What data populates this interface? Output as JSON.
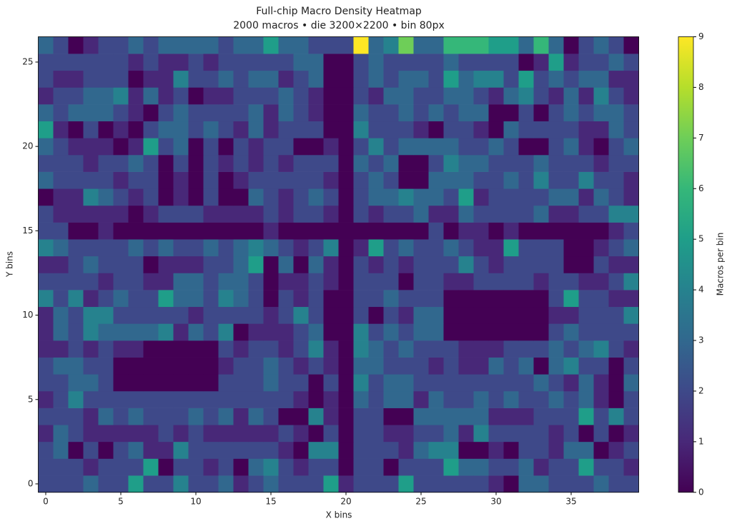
{
  "chart_data": {
    "type": "heatmap",
    "title": "Full-chip Macro Density Heatmap",
    "subtitle": "2000 macros • die 3200×2200 • bin 80px",
    "x_label": "X bins",
    "y_label": "Y bins",
    "colorbar_label": "Macros per bin",
    "colormap": [
      "#440154",
      "#482878",
      "#3e4989",
      "#31688e",
      "#26828e",
      "#1f9e89",
      "#35b779",
      "#6ece58",
      "#b5de2b",
      "#fde725"
    ],
    "clim": [
      0,
      9
    ],
    "cticks": [
      0,
      1,
      2,
      3,
      4,
      5,
      6,
      7,
      8,
      9
    ],
    "xlim": [
      -0.5,
      39.5
    ],
    "ylim": [
      -0.5,
      26.5
    ],
    "xticks": [
      0,
      5,
      10,
      15,
      20,
      25,
      30,
      35
    ],
    "yticks": [
      0,
      5,
      10,
      15,
      20,
      25
    ],
    "z": [
      [
        2,
        2,
        2,
        3,
        2,
        2,
        5,
        2,
        2,
        4,
        2,
        2,
        3,
        1,
        2,
        3,
        2,
        2,
        2,
        5,
        1,
        2,
        2,
        2,
        5,
        2,
        2,
        2,
        2,
        2,
        1,
        0,
        3,
        3,
        2,
        2,
        2,
        3,
        2,
        2
      ],
      [
        2,
        2,
        2,
        1,
        2,
        2,
        2,
        5,
        0,
        2,
        2,
        1,
        2,
        0,
        3,
        4,
        2,
        1,
        2,
        2,
        0,
        2,
        2,
        0,
        2,
        2,
        2,
        5,
        3,
        3,
        2,
        2,
        3,
        1,
        2,
        2,
        5,
        2,
        2,
        1
      ],
      [
        2,
        3,
        0,
        2,
        0,
        2,
        3,
        1,
        1,
        4,
        2,
        2,
        2,
        2,
        2,
        2,
        1,
        0,
        4,
        4,
        0,
        2,
        2,
        2,
        1,
        3,
        4,
        4,
        0,
        0,
        1,
        0,
        2,
        2,
        1,
        3,
        3,
        0,
        1,
        2
      ],
      [
        1,
        3,
        2,
        1,
        1,
        1,
        1,
        1,
        2,
        1,
        2,
        1,
        1,
        1,
        1,
        1,
        2,
        1,
        0,
        2,
        0,
        2,
        2,
        1,
        1,
        2,
        2,
        3,
        1,
        4,
        2,
        2,
        2,
        2,
        1,
        2,
        0,
        2,
        0,
        1
      ],
      [
        2,
        2,
        2,
        1,
        3,
        2,
        3,
        2,
        2,
        2,
        3,
        2,
        3,
        1,
        3,
        2,
        0,
        0,
        4,
        1,
        0,
        2,
        2,
        0,
        0,
        3,
        3,
        3,
        3,
        3,
        1,
        1,
        1,
        2,
        2,
        2,
        5,
        2,
        4,
        2
      ],
      [
        1,
        2,
        4,
        2,
        2,
        2,
        2,
        2,
        2,
        2,
        2,
        2,
        2,
        2,
        2,
        2,
        2,
        1,
        0,
        1,
        0,
        3,
        2,
        3,
        3,
        1,
        3,
        2,
        2,
        3,
        2,
        3,
        2,
        2,
        3,
        2,
        3,
        1,
        0,
        2
      ],
      [
        2,
        2,
        3,
        3,
        2,
        0,
        0,
        0,
        0,
        0,
        0,
        0,
        2,
        2,
        2,
        3,
        2,
        2,
        0,
        2,
        0,
        4,
        2,
        3,
        3,
        2,
        2,
        2,
        2,
        2,
        2,
        2,
        2,
        3,
        2,
        1,
        3,
        1,
        0,
        3
      ],
      [
        2,
        3,
        3,
        2,
        2,
        0,
        0,
        0,
        0,
        0,
        0,
        0,
        1,
        2,
        2,
        3,
        2,
        1,
        2,
        1,
        0,
        3,
        3,
        2,
        2,
        2,
        1,
        2,
        1,
        1,
        3,
        2,
        3,
        0,
        3,
        4,
        2,
        2,
        0,
        2
      ],
      [
        1,
        1,
        2,
        1,
        2,
        1,
        1,
        0,
        0,
        0,
        0,
        0,
        2,
        1,
        2,
        2,
        1,
        2,
        4,
        1,
        0,
        4,
        3,
        2,
        3,
        2,
        2,
        2,
        1,
        1,
        1,
        2,
        2,
        2,
        3,
        2,
        3,
        4,
        2,
        1
      ],
      [
        1,
        3,
        2,
        4,
        3,
        3,
        3,
        3,
        4,
        1,
        3,
        2,
        4,
        0,
        1,
        1,
        1,
        2,
        3,
        0,
        0,
        4,
        2,
        3,
        2,
        3,
        3,
        0,
        0,
        0,
        0,
        0,
        0,
        0,
        2,
        3,
        2,
        2,
        2,
        2
      ],
      [
        1,
        3,
        2,
        4,
        4,
        2,
        2,
        2,
        2,
        2,
        1,
        2,
        2,
        2,
        2,
        1,
        2,
        4,
        2,
        0,
        0,
        2,
        0,
        2,
        1,
        3,
        3,
        0,
        0,
        0,
        0,
        0,
        0,
        0,
        1,
        1,
        2,
        2,
        2,
        4
      ],
      [
        4,
        2,
        4,
        1,
        2,
        3,
        2,
        2,
        5,
        3,
        3,
        2,
        4,
        3,
        2,
        0,
        2,
        1,
        2,
        0,
        0,
        2,
        2,
        3,
        2,
        2,
        2,
        0,
        0,
        0,
        0,
        0,
        0,
        0,
        2,
        5,
        2,
        2,
        1,
        1
      ],
      [
        2,
        2,
        2,
        2,
        1,
        2,
        2,
        1,
        1,
        3,
        3,
        2,
        3,
        3,
        2,
        0,
        1,
        1,
        2,
        1,
        0,
        2,
        2,
        2,
        0,
        2,
        2,
        1,
        1,
        2,
        2,
        2,
        2,
        1,
        2,
        2,
        1,
        1,
        2,
        4
      ],
      [
        1,
        1,
        2,
        3,
        2,
        2,
        2,
        0,
        1,
        1,
        1,
        2,
        2,
        3,
        5,
        0,
        3,
        0,
        3,
        1,
        0,
        2,
        1,
        2,
        1,
        2,
        2,
        2,
        4,
        2,
        1,
        2,
        2,
        2,
        2,
        0,
        0,
        2,
        1,
        1
      ],
      [
        4,
        3,
        2,
        2,
        2,
        2,
        3,
        2,
        3,
        2,
        2,
        3,
        2,
        3,
        4,
        3,
        2,
        1,
        2,
        4,
        0,
        1,
        5,
        2,
        3,
        2,
        2,
        3,
        2,
        1,
        1,
        5,
        2,
        2,
        2,
        0,
        0,
        1,
        2,
        3
      ],
      [
        2,
        2,
        0,
        0,
        1,
        0,
        0,
        0,
        0,
        0,
        0,
        0,
        0,
        0,
        0,
        1,
        0,
        0,
        0,
        0,
        0,
        0,
        0,
        0,
        0,
        0,
        2,
        0,
        1,
        1,
        0,
        1,
        0,
        0,
        0,
        0,
        0,
        0,
        1,
        2
      ],
      [
        2,
        1,
        1,
        1,
        1,
        1,
        0,
        1,
        2,
        2,
        2,
        1,
        1,
        1,
        1,
        2,
        1,
        2,
        2,
        1,
        0,
        2,
        1,
        2,
        2,
        3,
        1,
        1,
        3,
        2,
        2,
        2,
        2,
        3,
        1,
        1,
        2,
        2,
        4,
        4
      ],
      [
        0,
        1,
        1,
        4,
        3,
        2,
        1,
        2,
        0,
        1,
        0,
        2,
        0,
        0,
        3,
        2,
        1,
        2,
        3,
        2,
        0,
        2,
        3,
        3,
        4,
        3,
        3,
        2,
        5,
        1,
        2,
        2,
        2,
        2,
        3,
        3,
        1,
        3,
        2,
        1
      ],
      [
        3,
        2,
        2,
        2,
        2,
        1,
        2,
        2,
        0,
        1,
        0,
        2,
        0,
        1,
        2,
        2,
        2,
        2,
        2,
        1,
        0,
        2,
        3,
        2,
        0,
        0,
        3,
        3,
        3,
        2,
        2,
        3,
        2,
        4,
        2,
        2,
        4,
        2,
        2,
        1
      ],
      [
        2,
        2,
        2,
        1,
        2,
        2,
        3,
        2,
        0,
        2,
        0,
        2,
        1,
        2,
        1,
        2,
        1,
        2,
        2,
        2,
        0,
        3,
        2,
        3,
        0,
        0,
        2,
        4,
        3,
        3,
        2,
        2,
        2,
        3,
        2,
        2,
        2,
        1,
        2,
        2
      ],
      [
        3,
        2,
        1,
        1,
        1,
        0,
        1,
        5,
        2,
        3,
        0,
        2,
        0,
        2,
        1,
        2,
        2,
        0,
        0,
        1,
        0,
        2,
        4,
        2,
        3,
        3,
        3,
        3,
        2,
        2,
        3,
        2,
        0,
        0,
        2,
        3,
        1,
        0,
        2,
        3
      ],
      [
        5,
        1,
        0,
        2,
        0,
        1,
        0,
        2,
        3,
        3,
        2,
        3,
        2,
        1,
        3,
        1,
        2,
        2,
        2,
        0,
        0,
        4,
        2,
        2,
        2,
        1,
        0,
        2,
        2,
        1,
        0,
        3,
        2,
        2,
        2,
        2,
        1,
        1,
        3,
        2
      ],
      [
        3,
        2,
        3,
        3,
        3,
        2,
        1,
        0,
        2,
        3,
        2,
        2,
        2,
        2,
        3,
        1,
        3,
        2,
        1,
        0,
        0,
        3,
        2,
        2,
        3,
        2,
        3,
        2,
        3,
        3,
        0,
        0,
        2,
        0,
        2,
        3,
        2,
        3,
        3,
        2
      ],
      [
        1,
        2,
        2,
        3,
        3,
        4,
        1,
        3,
        1,
        2,
        0,
        1,
        1,
        2,
        2,
        2,
        3,
        2,
        1,
        0,
        0,
        2,
        1,
        3,
        3,
        2,
        2,
        3,
        3,
        2,
        1,
        3,
        4,
        2,
        1,
        3,
        1,
        4,
        2,
        1
      ],
      [
        2,
        1,
        1,
        2,
        2,
        2,
        0,
        1,
        1,
        4,
        2,
        2,
        3,
        2,
        3,
        3,
        1,
        2,
        3,
        0,
        0,
        2,
        3,
        2,
        3,
        3,
        2,
        5,
        3,
        4,
        4,
        2,
        5,
        2,
        3,
        2,
        3,
        3,
        1,
        1
      ],
      [
        2,
        2,
        2,
        2,
        2,
        2,
        1,
        2,
        1,
        1,
        2,
        1,
        2,
        2,
        2,
        2,
        2,
        3,
        3,
        0,
        0,
        2,
        3,
        2,
        2,
        2,
        2,
        3,
        2,
        2,
        2,
        2,
        0,
        1,
        5,
        1,
        2,
        2,
        3,
        2
      ],
      [
        3,
        2,
        0,
        1,
        2,
        2,
        3,
        2,
        3,
        3,
        3,
        3,
        2,
        3,
        3,
        5,
        3,
        3,
        2,
        2,
        2,
        9,
        3,
        4,
        7,
        3,
        3,
        6,
        6,
        6,
        5,
        5,
        3,
        6,
        3,
        0,
        2,
        3,
        2,
        0
      ]
    ]
  }
}
